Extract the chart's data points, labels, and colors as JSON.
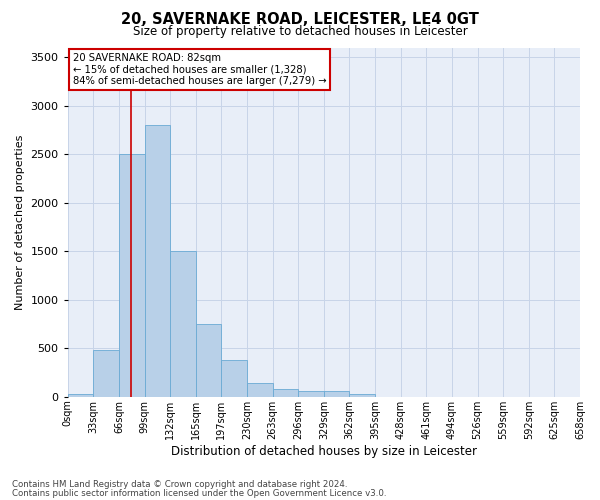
{
  "title": "20, SAVERNAKE ROAD, LEICESTER, LE4 0GT",
  "subtitle": "Size of property relative to detached houses in Leicester",
  "xlabel": "Distribution of detached houses by size in Leicester",
  "ylabel": "Number of detached properties",
  "bar_color": "#b8d0e8",
  "bar_edge_color": "#6aaad4",
  "bar_heights": [
    30,
    480,
    2500,
    2800,
    1500,
    750,
    380,
    140,
    80,
    60,
    60,
    30,
    0,
    0,
    0,
    0,
    0,
    0,
    0,
    0
  ],
  "bin_labels": [
    "0sqm",
    "33sqm",
    "66sqm",
    "99sqm",
    "132sqm",
    "165sqm",
    "197sqm",
    "230sqm",
    "263sqm",
    "296sqm",
    "329sqm",
    "362sqm",
    "395sqm",
    "428sqm",
    "461sqm",
    "494sqm",
    "526sqm",
    "559sqm",
    "592sqm",
    "625sqm",
    "658sqm"
  ],
  "marker_bin": 2.48,
  "marker_color": "#cc0000",
  "annotation_lines": [
    "20 SAVERNAKE ROAD: 82sqm",
    "← 15% of detached houses are smaller (1,328)",
    "84% of semi-detached houses are larger (7,279) →"
  ],
  "annotation_box_color": "#cc0000",
  "ylim": [
    0,
    3600
  ],
  "yticks": [
    0,
    500,
    1000,
    1500,
    2000,
    2500,
    3000,
    3500
  ],
  "grid_color": "#c8d4e8",
  "bg_color": "#e8eef8",
  "footer_line1": "Contains HM Land Registry data © Crown copyright and database right 2024.",
  "footer_line2": "Contains public sector information licensed under the Open Government Licence v3.0."
}
